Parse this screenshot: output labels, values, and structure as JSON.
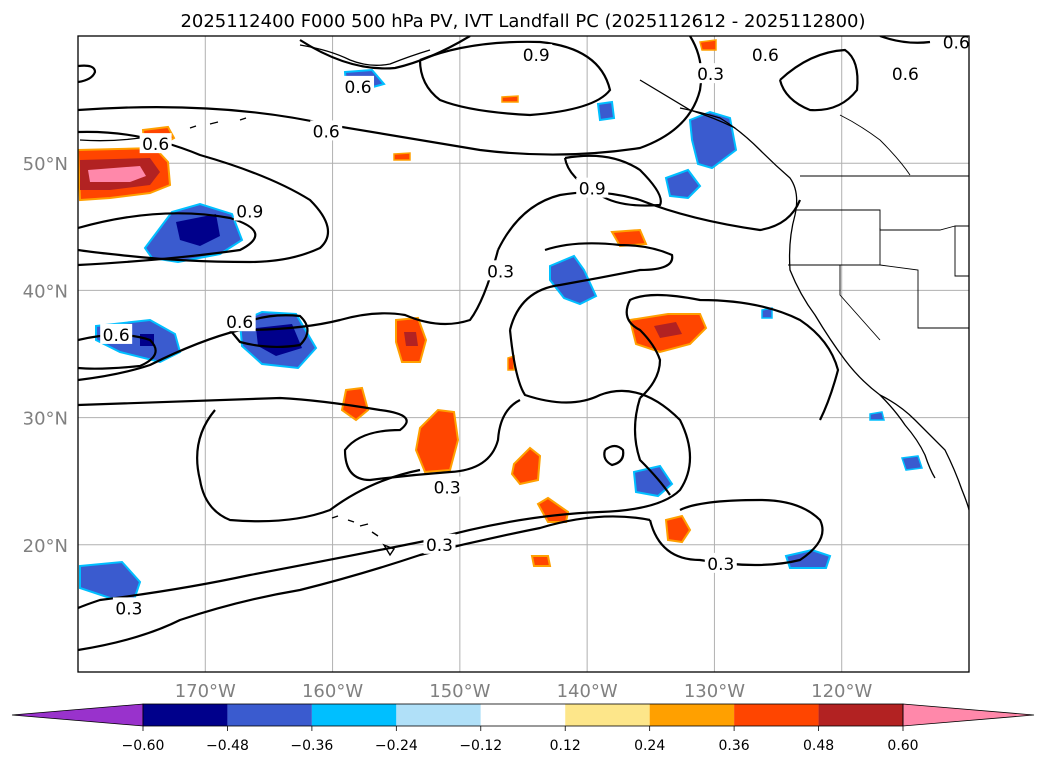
{
  "chart_data": {
    "type": "map-contour",
    "title": "2025112400 F000 500 hPa PV, IVT Landfall PC (2025112612 - 2025112800)",
    "projection": "plate-carree",
    "lon_range": [
      -180,
      -110
    ],
    "lat_range": [
      10,
      60
    ],
    "x_ticks": [
      {
        "lon": -170,
        "label": "170°W"
      },
      {
        "lon": -160,
        "label": "160°W"
      },
      {
        "lon": -150,
        "label": "150°W"
      },
      {
        "lon": -140,
        "label": "140°W"
      },
      {
        "lon": -130,
        "label": "130°W"
      },
      {
        "lon": -120,
        "label": "120°W"
      }
    ],
    "y_ticks": [
      {
        "lat": 20,
        "label": "20°N"
      },
      {
        "lat": 30,
        "label": "30°N"
      },
      {
        "lat": 40,
        "label": "40°N"
      },
      {
        "lat": 50,
        "label": "50°N"
      }
    ],
    "grid": true,
    "contour_labels": [
      {
        "text": "0.9",
        "lon": -144,
        "lat": 58.5
      },
      {
        "text": "0.6",
        "lon": -158,
        "lat": 56.0
      },
      {
        "text": "0.6",
        "lon": -126,
        "lat": 58.5
      },
      {
        "text": "0.6",
        "lon": -115,
        "lat": 57.0
      },
      {
        "text": "0.6",
        "lon": -111,
        "lat": 59.5
      },
      {
        "text": "0.3",
        "lon": -130.3,
        "lat": 57.0
      },
      {
        "text": "0.6",
        "lon": -160.5,
        "lat": 52.5
      },
      {
        "text": "0.6",
        "lon": -173.9,
        "lat": 51.5
      },
      {
        "text": "0.9",
        "lon": -139.6,
        "lat": 48.0
      },
      {
        "text": "0.9",
        "lon": -166.5,
        "lat": 46.2
      },
      {
        "text": "0.3",
        "lon": -146.8,
        "lat": 41.5
      },
      {
        "text": "0.6",
        "lon": -167.3,
        "lat": 37.5
      },
      {
        "text": "0.6",
        "lon": -177.0,
        "lat": 36.5
      },
      {
        "text": "0.3",
        "lon": -151.0,
        "lat": 24.5
      },
      {
        "text": "0.3",
        "lon": -151.6,
        "lat": 20.0
      },
      {
        "text": "0.3",
        "lon": -129.5,
        "lat": 18.5
      },
      {
        "text": "0.3",
        "lon": -176.0,
        "lat": 15.0
      }
    ],
    "colorbar": {
      "levels": [
        -0.6,
        -0.48,
        -0.36,
        -0.24,
        -0.12,
        0.12,
        0.24,
        0.36,
        0.48,
        0.6
      ],
      "tick_labels": [
        "−0.60",
        "−0.48",
        "−0.36",
        "−0.24",
        "−0.12",
        "0.12",
        "0.24",
        "0.36",
        "0.48",
        "0.60"
      ],
      "colors": [
        "#9932cc",
        "#00008b",
        "#3a5bcf",
        "#00bfff",
        "#b0e0f8",
        "#ffffff",
        "#fde68a",
        "#ffa000",
        "#ff4500",
        "#b22222",
        "#ff88aa"
      ],
      "extend": "both"
    }
  }
}
